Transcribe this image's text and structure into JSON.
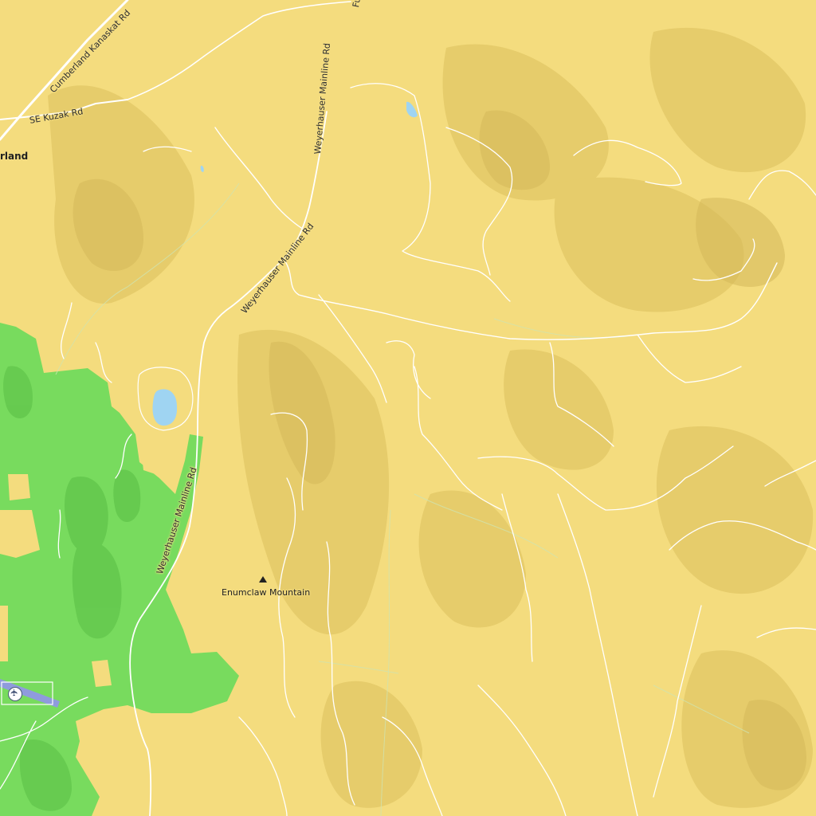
{
  "map": {
    "colors": {
      "land": "#f4dc7e",
      "hill_shade": "#e0c462",
      "forest": "#78db5e",
      "forest_shade": "#5fc44a",
      "water": "#9fd4f2",
      "road": "#ffffff",
      "runway": "#8f9bdc"
    },
    "labels": {
      "place_cumberland": "rland",
      "road_cumberland_kanaskat": "Cumberland Kanaskat Rd",
      "road_kuzak": "SE Kuzak Rd",
      "road_weyerhauser_upper": "Weyerhauser Mainline Rd",
      "road_weyerhauser_middle": "Weyerhauser Mainline Rd",
      "road_weyerhauser_lower": "Weyerhauser Mainline Rd",
      "road_fu": "Fu",
      "peak_enumclaw": "Enumclaw Mountain"
    },
    "icons": {
      "peak": "mountain-peak-icon",
      "airport": "airport-icon"
    }
  }
}
